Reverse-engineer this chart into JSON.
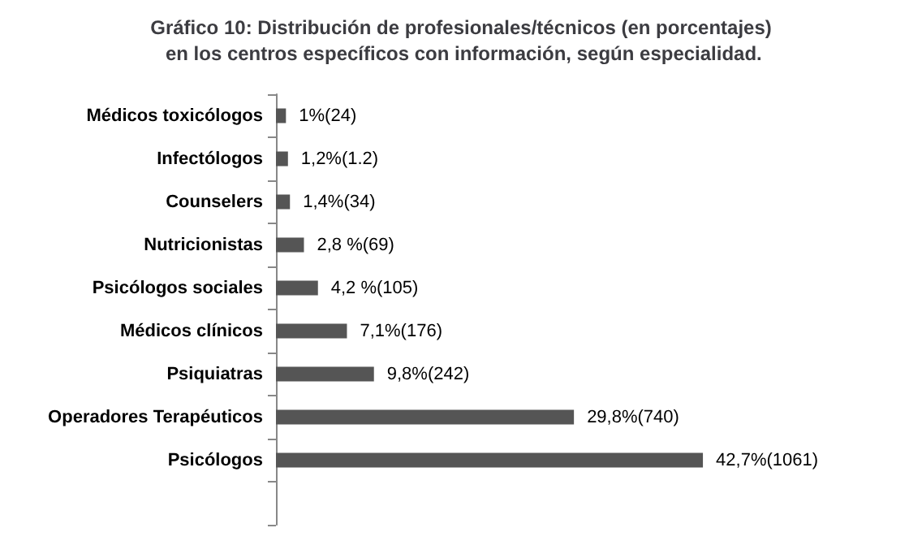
{
  "chart_data": {
    "type": "bar",
    "orientation": "horizontal",
    "title": "Gráfico 10: Distribución de profesionales/técnicos (en porcentajes) en los centros específicos con información, según especialidad.",
    "categories": [
      "Médicos toxicólogos",
      "Infectólogos",
      "Counselers",
      "Nutricionistas",
      "Psicólogos sociales",
      "Médicos clínicos",
      "Psiquiatras",
      "Operadores Terapéuticos",
      "Psicólogos",
      null
    ],
    "values": [
      1,
      1.2,
      1.4,
      2.8,
      4.2,
      7.1,
      9.8,
      29.8,
      42.7,
      null
    ],
    "value_labels": [
      "1%(24)",
      "1,2%(1.2)",
      "1,4%(34)",
      "2,8 %(69)",
      "4,2 %(105)",
      "7,1%(176)",
      "9,8%(242)",
      "29,8%(740)",
      "42,7%(1061)",
      null
    ],
    "color": "#555555",
    "tick_labels": "y"
  }
}
